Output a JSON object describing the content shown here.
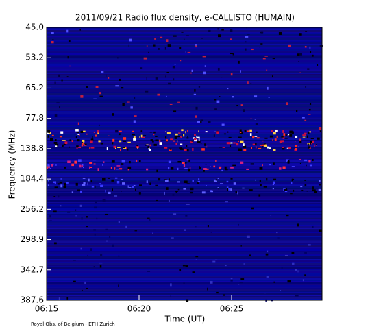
{
  "chart_data": {
    "type": "spectrogram",
    "title": "2011/09/21  Radio flux density, e-CALLISTO (HUMAIN)",
    "x_label": "Time (UT)",
    "y_label": "Frequency (MHz)",
    "xticks": [
      "06:15",
      "06:20",
      "06:25"
    ],
    "yticks": [
      {
        "value": 45,
        "label": "45.0"
      },
      53.2,
      65.2,
      77.8,
      138.8,
      184.4,
      256.2,
      298.9,
      342.7,
      387.6
    ],
    "credit": "Royal Obs. of Belgium - ETH Zurich"
  }
}
